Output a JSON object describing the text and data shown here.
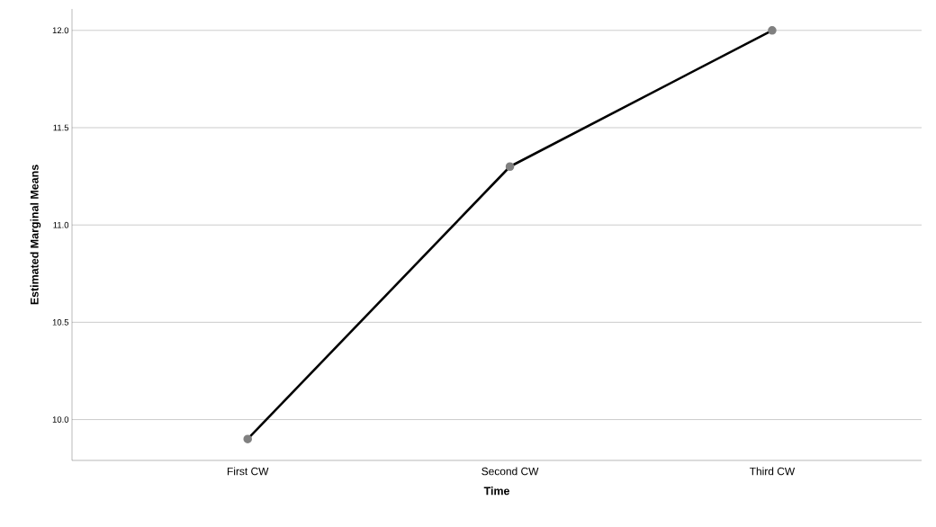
{
  "chart_data": {
    "type": "line",
    "xlabel": "Time",
    "ylabel": "Estimated Marginal Means",
    "categories": [
      "First CW",
      "Second CW",
      "Third CW"
    ],
    "series": [
      {
        "color": "#000000",
        "values": [
          9.9,
          11.3,
          12.0
        ]
      }
    ],
    "ylim": [
      9.79,
      12.11
    ],
    "yticks": [
      {
        "value": 10,
        "label": "10.0"
      },
      {
        "value": 10.5,
        "label": "10.5"
      },
      {
        "value": 11,
        "label": "11.0"
      },
      {
        "value": 11.5,
        "label": "11.5"
      },
      {
        "value": 12,
        "label": "12.0"
      }
    ],
    "grid": "y",
    "marker": "circle",
    "line_style": "solid"
  }
}
